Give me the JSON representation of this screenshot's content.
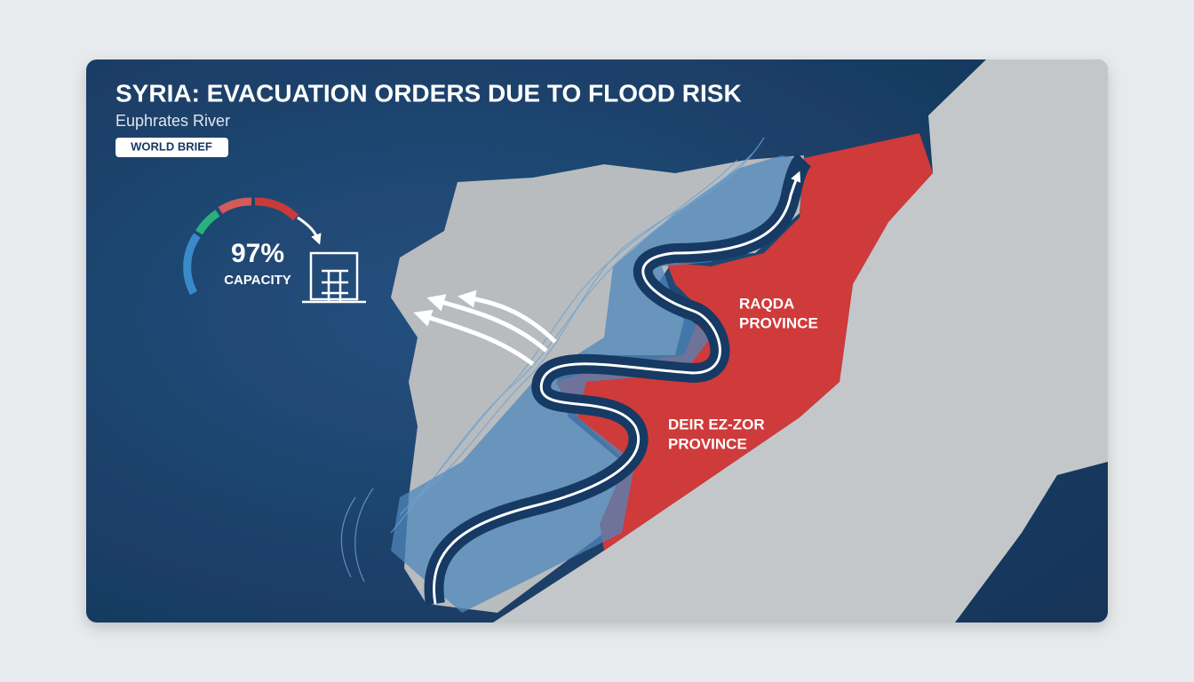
{
  "header": {
    "title": "SYRIA: EVACUATION ORDERS DUE TO FLOOD RISK",
    "subtitle": "Euphrates River",
    "badge": "WORLD BRIEF"
  },
  "gauge": {
    "value": "97%",
    "label": "CAPACITY"
  },
  "regions": [
    {
      "lines": [
        "RAQDA",
        "PROVINCE"
      ]
    },
    {
      "lines": [
        "DEIR EZ-ZOR",
        "PROVINCE"
      ]
    }
  ]
}
